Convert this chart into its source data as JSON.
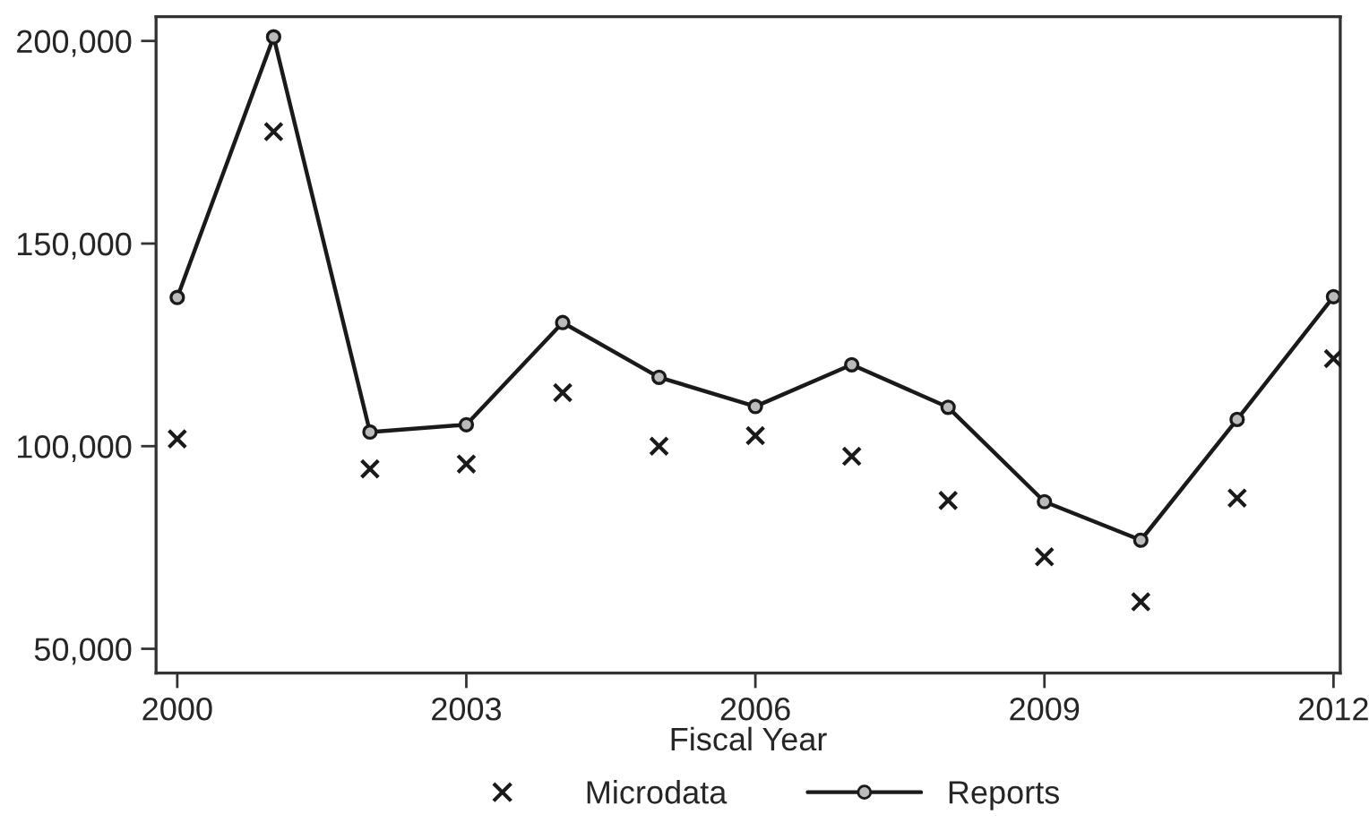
{
  "chart_data": {
    "type": "line",
    "xlabel": "Fiscal Year",
    "x": [
      2000,
      2001,
      2002,
      2003,
      2004,
      2005,
      2006,
      2007,
      2008,
      2009,
      2010,
      2011,
      2012
    ],
    "series": [
      {
        "name": "Microdata",
        "type": "scatter",
        "marker": "cross",
        "color": "#1a1a1a",
        "values": [
          101800,
          177600,
          94400,
          95600,
          113200,
          100000,
          102600,
          97500,
          86600,
          72700,
          61600,
          87200,
          121600
        ]
      },
      {
        "name": "Reports",
        "marker": "circle",
        "line_style": "solid",
        "color": "#1a1a1a",
        "values": [
          136700,
          201000,
          103500,
          105300,
          130500,
          117000,
          109800,
          120100,
          109600,
          86300,
          76800,
          106600,
          136900
        ]
      }
    ],
    "xlim": [
      1999.78,
      2012.07
    ],
    "xticks": [
      2000,
      2003,
      2006,
      2009,
      2012
    ],
    "ylim": [
      44000,
      206000
    ],
    "yticks": [
      {
        "value": 50000,
        "label": "50,000"
      },
      {
        "value": 100000,
        "label": "100,000"
      },
      {
        "value": 150000,
        "label": "150,000"
      },
      {
        "value": 200000,
        "label": "200,000"
      }
    ],
    "grid": false,
    "legend": "bottom"
  }
}
